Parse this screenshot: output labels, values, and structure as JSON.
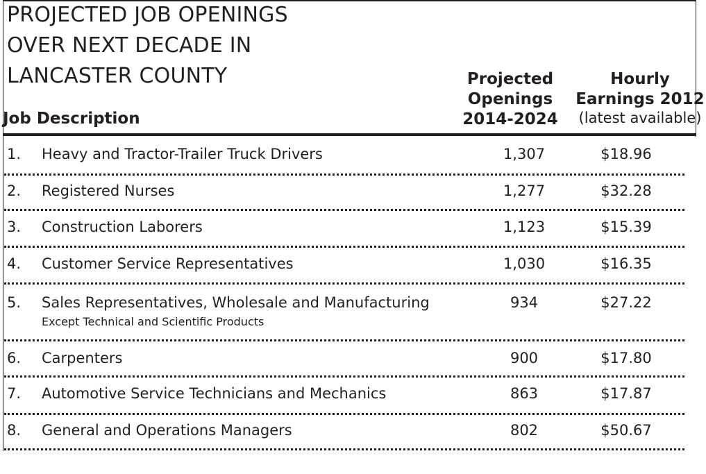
{
  "chart_data": {
    "type": "table",
    "title": "PROJECTED JOB OPENINGS\nOVER NEXT DECADE IN\nLANCASTER COUNTY",
    "columns": {
      "description": "Job Description",
      "openings": "Projected\nOpenings\n2014-2024",
      "earnings": "Hourly\nEarnings 2012",
      "earnings_note": "(latest available)"
    },
    "rows": [
      {
        "rank": "1.",
        "job": "Heavy and Tractor-Trailer Truck Drivers",
        "note": "",
        "openings": "1,307",
        "earnings": "$18.96"
      },
      {
        "rank": "2.",
        "job": "Registered Nurses",
        "note": "",
        "openings": "1,277",
        "earnings": "$32.28"
      },
      {
        "rank": "3.",
        "job": "Construction Laborers",
        "note": "",
        "openings": "1,123",
        "earnings": "$15.39"
      },
      {
        "rank": "4.",
        "job": "Customer Service Representatives",
        "note": "",
        "openings": "1,030",
        "earnings": "$16.35"
      },
      {
        "rank": "5.",
        "job": "Sales Representatives, Wholesale and Manufacturing",
        "note": "Except Technical and Scientific Products",
        "openings": "934",
        "earnings": "$27.22"
      },
      {
        "rank": "6.",
        "job": "Carpenters",
        "note": "",
        "openings": "900",
        "earnings": "$17.80"
      },
      {
        "rank": "7.",
        "job": "Automotive Service Technicians and Mechanics",
        "note": "",
        "openings": "863",
        "earnings": "$17.87"
      },
      {
        "rank": "8.",
        "job": "General and Operations Managers",
        "note": "",
        "openings": "802",
        "earnings": "$50.67"
      }
    ]
  }
}
